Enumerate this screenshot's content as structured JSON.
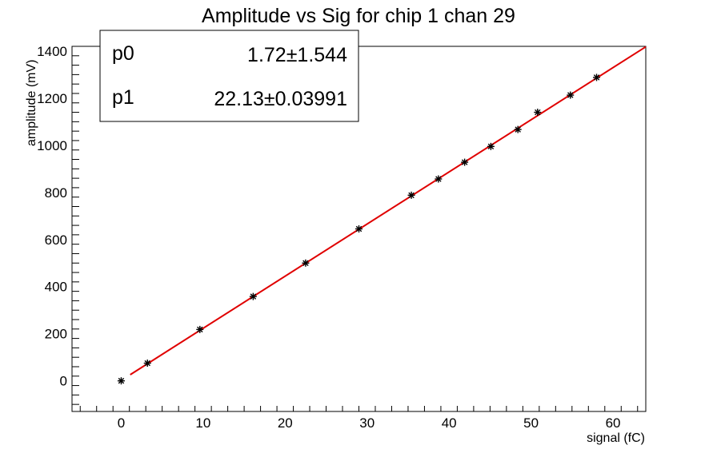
{
  "chart_data": {
    "type": "scatter",
    "title": "Amplitude vs Sig for chip 1 chan 29",
    "xlabel": "signal (fC)",
    "ylabel": "amplitude (mV)",
    "xlim": [
      -6,
      64
    ],
    "ylim": [
      -130,
      1420
    ],
    "x_ticks": [
      0,
      10,
      20,
      30,
      40,
      50,
      60
    ],
    "y_ticks": [
      0,
      200,
      400,
      600,
      800,
      1000,
      1200,
      1400
    ],
    "grid": false,
    "series": [
      {
        "marker": "asterisk",
        "color": "#000000",
        "points": [
          {
            "x": 0,
            "y": 0
          },
          {
            "x": 3.2,
            "y": 75
          },
          {
            "x": 9.6,
            "y": 218
          },
          {
            "x": 16.1,
            "y": 358
          },
          {
            "x": 22.5,
            "y": 500
          },
          {
            "x": 29.0,
            "y": 645
          },
          {
            "x": 35.4,
            "y": 788
          },
          {
            "x": 38.7,
            "y": 857
          },
          {
            "x": 41.9,
            "y": 928
          },
          {
            "x": 45.1,
            "y": 995
          },
          {
            "x": 48.4,
            "y": 1067
          },
          {
            "x": 50.8,
            "y": 1140
          },
          {
            "x": 54.8,
            "y": 1213
          },
          {
            "x": 58.0,
            "y": 1288
          }
        ]
      }
    ],
    "fit": {
      "color": "#e00000",
      "x_range": [
        1.1,
        64
      ],
      "p0": 1.72,
      "p1": 22.13
    },
    "stats_box": {
      "rows": [
        {
          "name": "p0",
          "value": "1.72±1.544"
        },
        {
          "name": "p1",
          "value": "22.13±0.03991"
        }
      ]
    }
  }
}
